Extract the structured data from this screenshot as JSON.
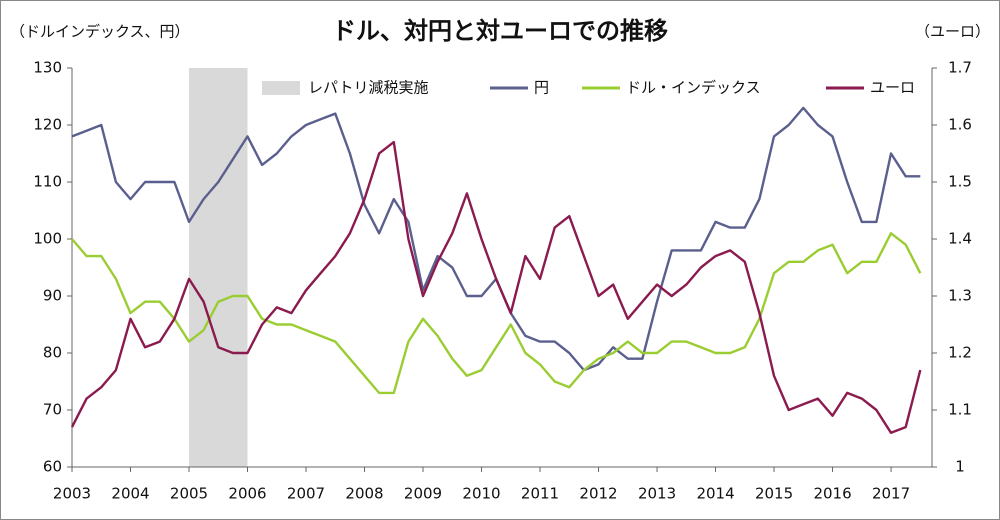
{
  "chart_data": {
    "type": "line",
    "title": "ドル、対円と対ユーロでの推移",
    "y_label": "（ドルインデックス、円）",
    "y2_label": "（ユーロ）",
    "shade": {
      "name": "レパトリ減税実施",
      "xrange": [
        2005,
        2006
      ],
      "color": "#d9d9d9"
    },
    "x": [
      2003,
      2003.25,
      2003.5,
      2003.75,
      2004,
      2004.25,
      2004.5,
      2004.75,
      2005,
      2005.25,
      2005.5,
      2005.75,
      2006,
      2006.25,
      2006.5,
      2006.75,
      2007,
      2007.25,
      2007.5,
      2007.75,
      2008,
      2008.25,
      2008.5,
      2008.75,
      2009,
      2009.25,
      2009.5,
      2009.75,
      2010,
      2010.25,
      2010.5,
      2010.75,
      2011,
      2011.25,
      2011.5,
      2011.75,
      2012,
      2012.25,
      2012.5,
      2012.75,
      2013,
      2013.25,
      2013.5,
      2013.75,
      2014,
      2014.25,
      2014.5,
      2014.75,
      2015,
      2015.25,
      2015.5,
      2015.75,
      2016,
      2016.25,
      2016.5,
      2016.75,
      2017,
      2017.25,
      2017.5
    ],
    "series": [
      {
        "name": "円",
        "color": "#5b5f8e",
        "values": [
          118,
          119,
          120,
          110,
          107,
          110,
          110,
          110,
          103,
          107,
          110,
          114,
          118,
          113,
          115,
          118,
          120,
          121,
          122,
          115,
          106,
          101,
          107,
          103,
          91,
          97,
          95,
          90,
          90,
          93,
          87,
          83,
          82,
          82,
          80,
          77,
          78,
          81,
          79,
          79,
          89,
          98,
          98,
          98,
          103,
          102,
          102,
          107,
          118,
          120,
          123,
          120,
          118,
          110,
          103,
          103,
          115,
          111,
          111
        ]
      },
      {
        "name": "ドル・インデックス",
        "color": "#9acd32",
        "values": [
          100,
          97,
          97,
          93,
          87,
          89,
          89,
          86,
          82,
          84,
          89,
          90,
          90,
          86,
          85,
          85,
          84,
          83,
          82,
          79,
          76,
          73,
          73,
          82,
          86,
          83,
          79,
          76,
          77,
          81,
          85,
          80,
          78,
          75,
          74,
          77,
          79,
          80,
          82,
          80,
          80,
          82,
          82,
          81,
          80,
          80,
          81,
          86,
          94,
          96,
          96,
          98,
          99,
          94,
          96,
          96,
          101,
          99,
          94
        ]
      },
      {
        "name": "ユーロ",
        "color": "#8b1a4f",
        "axis": "y2",
        "values": [
          1.07,
          1.12,
          1.14,
          1.17,
          1.26,
          1.21,
          1.22,
          1.26,
          1.33,
          1.29,
          1.21,
          1.2,
          1.2,
          1.25,
          1.28,
          1.27,
          1.31,
          1.34,
          1.37,
          1.41,
          1.47,
          1.55,
          1.57,
          1.4,
          1.3,
          1.36,
          1.41,
          1.48,
          1.4,
          1.33,
          1.27,
          1.37,
          1.33,
          1.42,
          1.44,
          1.37,
          1.3,
          1.32,
          1.26,
          1.29,
          1.32,
          1.3,
          1.32,
          1.35,
          1.37,
          1.38,
          1.36,
          1.27,
          1.16,
          1.1,
          1.11,
          1.12,
          1.09,
          1.13,
          1.12,
          1.1,
          1.06,
          1.07,
          1.17
        ]
      }
    ],
    "xlim": [
      2003,
      2017.7
    ],
    "xticks": [
      2003,
      2004,
      2005,
      2006,
      2007,
      2008,
      2009,
      2010,
      2011,
      2012,
      2013,
      2014,
      2015,
      2016,
      2017
    ],
    "ylim": [
      60,
      130
    ],
    "yticks": [
      60,
      70,
      80,
      90,
      100,
      110,
      120,
      130
    ],
    "y2lim": [
      1,
      1.7
    ],
    "y2ticks": [
      1,
      1.1,
      1.2,
      1.3,
      1.4,
      1.5,
      1.6,
      1.7
    ]
  }
}
